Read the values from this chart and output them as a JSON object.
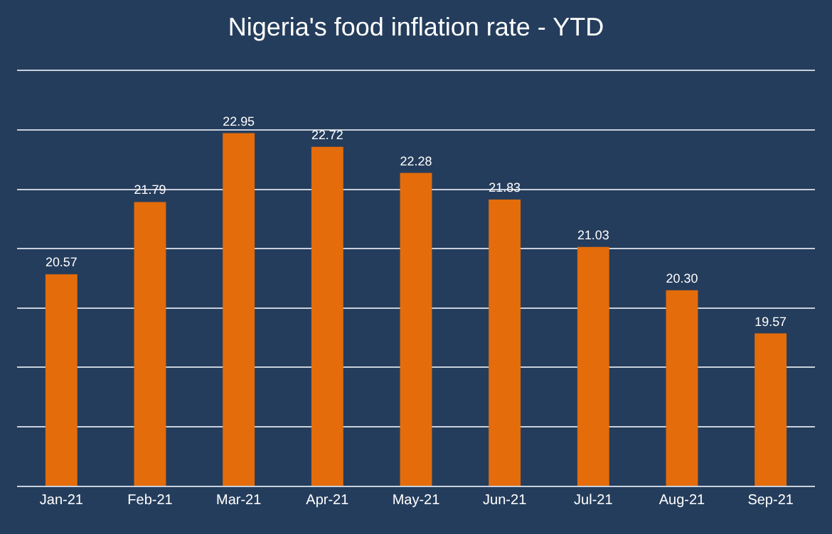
{
  "chart_data": {
    "type": "bar",
    "title": "Nigeria's food inflation rate - YTD",
    "categories": [
      "Jan-21",
      "Feb-21",
      "Mar-21",
      "Apr-21",
      "May-21",
      "Jun-21",
      "Jul-21",
      "Aug-21",
      "Sep-21"
    ],
    "values": [
      20.57,
      21.79,
      22.95,
      22.72,
      22.28,
      21.83,
      21.03,
      20.3,
      19.57
    ],
    "value_labels": [
      "20.57",
      "21.79",
      "22.95",
      "22.72",
      "22.28",
      "21.83",
      "21.03",
      "20.30",
      "19.57"
    ],
    "color": "#e46c0a",
    "ylim": [
      17,
      24
    ],
    "grid": "y",
    "tick_labels": "x"
  }
}
